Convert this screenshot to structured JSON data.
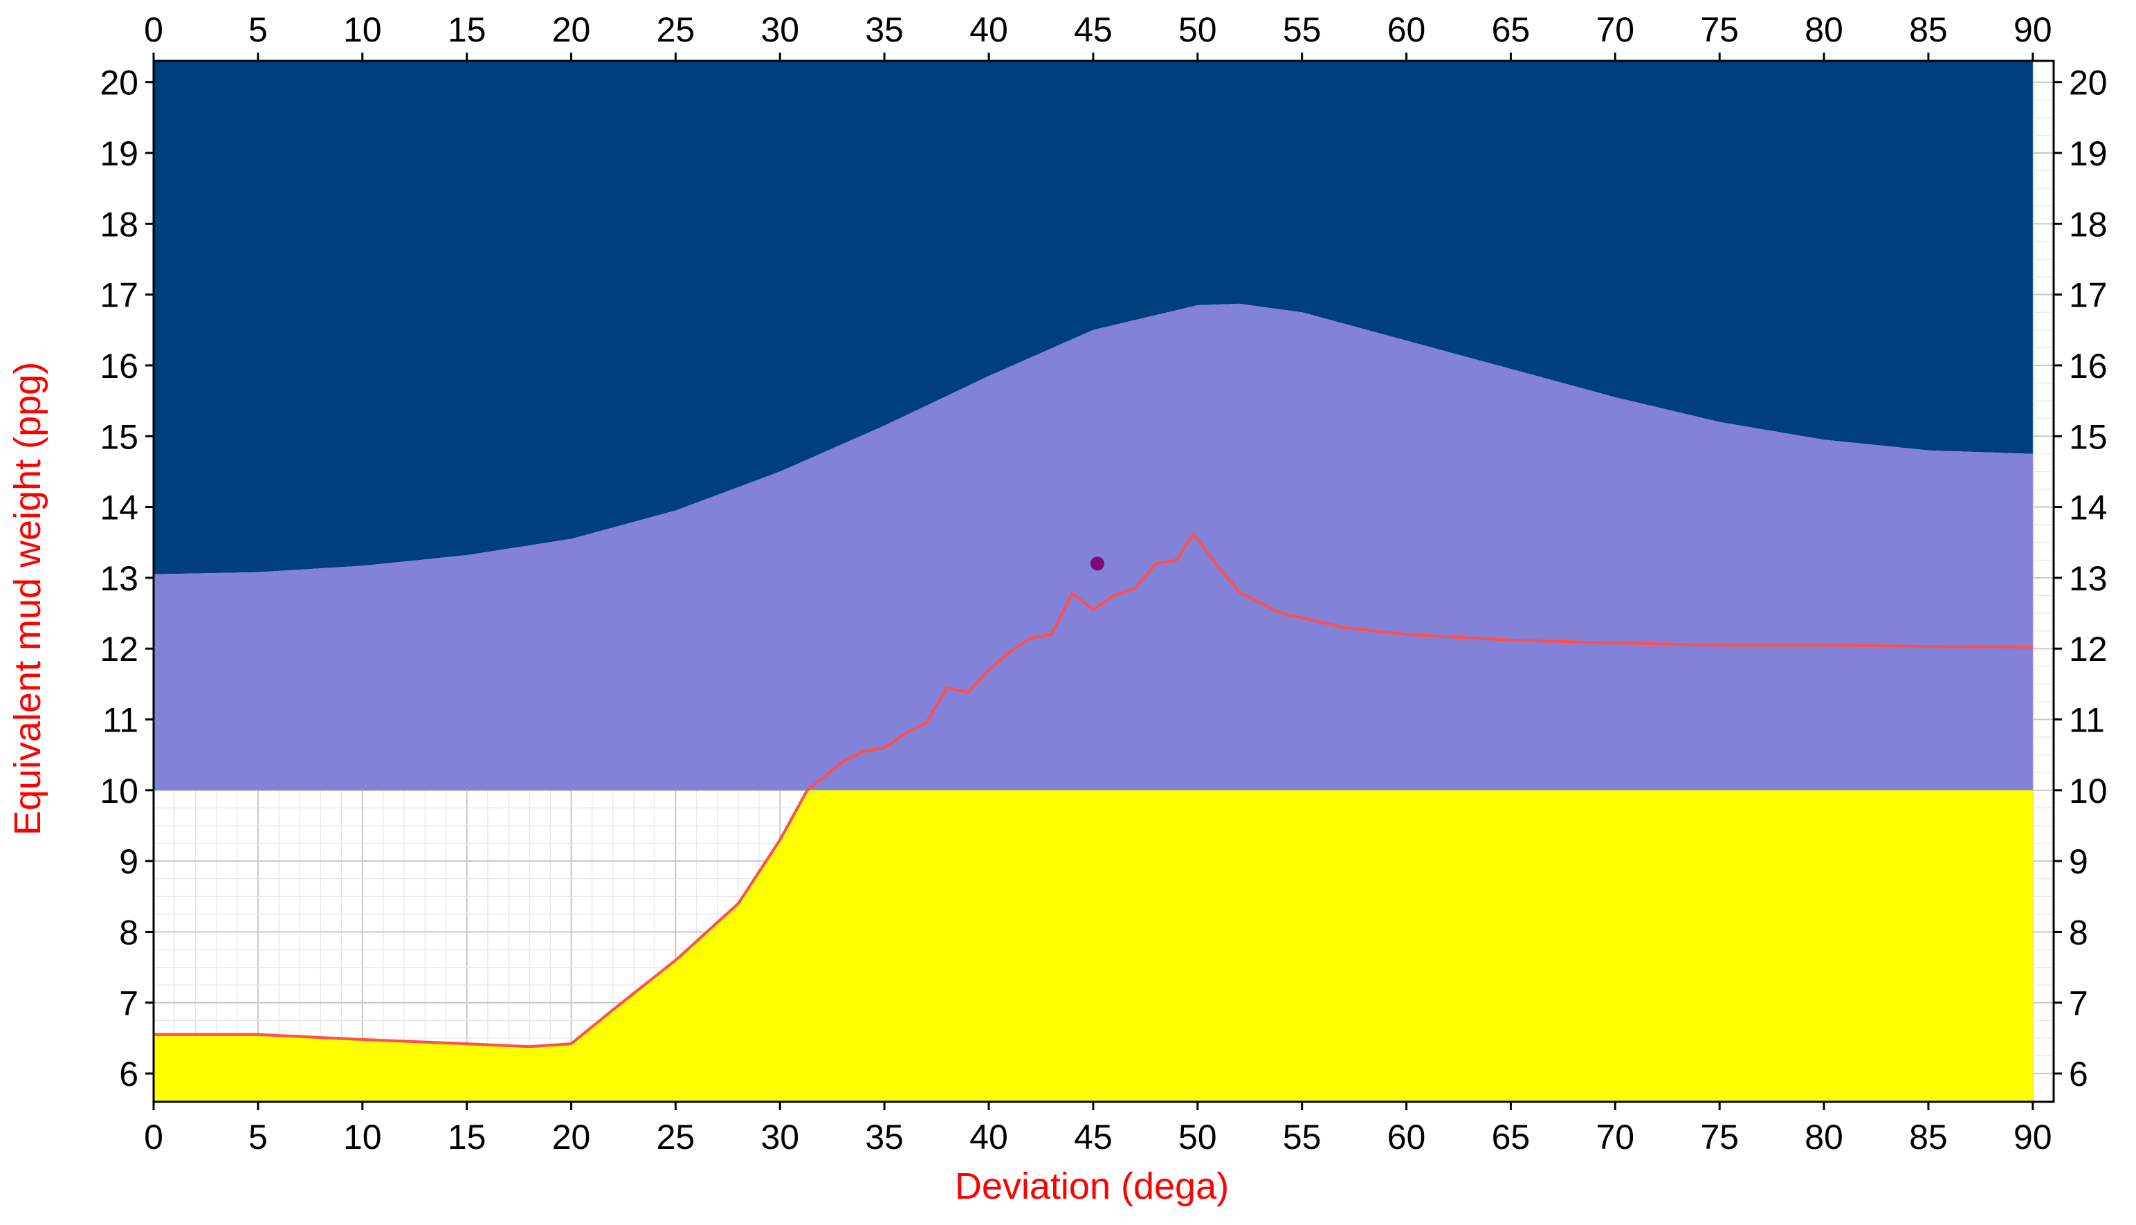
{
  "chart_data": {
    "type": "area",
    "title": "",
    "xlabel": "Deviation (dega)",
    "ylabel": "Equivalent mud weight (ppg)",
    "xlim": [
      0,
      91
    ],
    "ylim": [
      5.6,
      20.3
    ],
    "x_ticks": [
      "0",
      "5",
      "10",
      "15",
      "20",
      "25",
      "30",
      "35",
      "40",
      "45",
      "50",
      "55",
      "60",
      "65",
      "70",
      "75",
      "80",
      "85",
      "90"
    ],
    "y_ticks": [
      "6",
      "7",
      "8",
      "9",
      "10",
      "11",
      "12",
      "13",
      "14",
      "15",
      "16",
      "17",
      "18",
      "19",
      "20"
    ],
    "grid": "minor gridlines in unshaded region",
    "bands": [
      {
        "name": "lower",
        "color": "#ffff00",
        "x": [
          0,
          5,
          10,
          15,
          18,
          20,
          22,
          25,
          28,
          30,
          31.3,
          35,
          40,
          45,
          50,
          55,
          60,
          65,
          70,
          75,
          80,
          85,
          90
        ],
        "upper": [
          6.55,
          6.55,
          6.48,
          6.42,
          6.38,
          6.42,
          6.9,
          7.6,
          8.4,
          9.3,
          10.0,
          10.0,
          10.0,
          10.0,
          10.0,
          10.0,
          10.0,
          10.0,
          10.0,
          10.0,
          10.0,
          10.0,
          10.0
        ]
      },
      {
        "name": "middle",
        "color": "#8282d8",
        "x": [
          0,
          5,
          10,
          15,
          20,
          25,
          30,
          35,
          40,
          45,
          50,
          52,
          55,
          60,
          65,
          70,
          75,
          80,
          85,
          90
        ],
        "upper": [
          13.05,
          13.08,
          13.17,
          13.32,
          13.55,
          13.95,
          14.5,
          15.15,
          15.85,
          16.5,
          16.85,
          16.87,
          16.75,
          16.35,
          15.95,
          15.55,
          15.2,
          14.95,
          14.8,
          14.75
        ]
      },
      {
        "name": "upper",
        "color": "#003f7f"
      }
    ],
    "series": [
      {
        "color": "#ff4f4f",
        "x": [
          0,
          5,
          10,
          15,
          18,
          20,
          22,
          25,
          28,
          30,
          31.3,
          33,
          34,
          35,
          36,
          37,
          38,
          39,
          40,
          41,
          42,
          43,
          44,
          45,
          46,
          47,
          48,
          49,
          49.8,
          51,
          52,
          54,
          57,
          60,
          65,
          70,
          75,
          80,
          85,
          90
        ],
        "y": [
          6.55,
          6.55,
          6.48,
          6.42,
          6.38,
          6.42,
          6.9,
          7.6,
          8.4,
          9.3,
          10.0,
          10.4,
          10.55,
          10.6,
          10.8,
          10.95,
          11.45,
          11.38,
          11.7,
          11.95,
          12.15,
          12.2,
          12.78,
          12.55,
          12.75,
          12.85,
          13.2,
          13.25,
          13.62,
          13.15,
          12.8,
          12.5,
          12.3,
          12.2,
          12.12,
          12.08,
          12.05,
          12.05,
          12.03,
          12.02
        ]
      }
    ],
    "points": [
      {
        "x": 45.2,
        "y": 13.2,
        "color": "#7b0a7b"
      }
    ]
  }
}
